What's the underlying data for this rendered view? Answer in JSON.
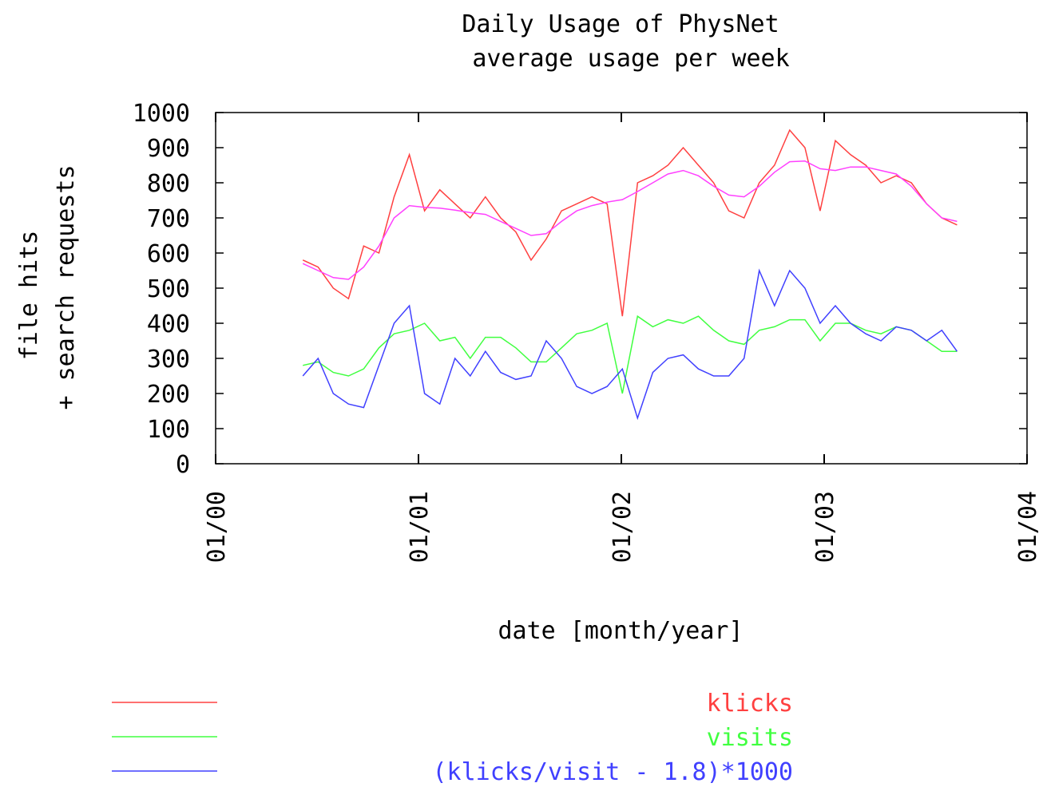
{
  "chart_data": {
    "type": "line",
    "title": "Daily Usage of PhysNet",
    "subtitle": "average usage per week",
    "x_label": "date [month/year]",
    "y_label": [
      "file hits",
      "+ search requests"
    ],
    "x": [
      2000.43,
      2000.505,
      2000.58,
      2000.655,
      2000.73,
      2000.805,
      2000.88,
      2000.955,
      2001.03,
      2001.105,
      2001.18,
      2001.255,
      2001.33,
      2001.405,
      2001.48,
      2001.555,
      2001.63,
      2001.705,
      2001.78,
      2001.855,
      2001.93,
      2002.005,
      2002.08,
      2002.155,
      2002.23,
      2002.305,
      2002.38,
      2002.455,
      2002.53,
      2002.605,
      2002.68,
      2002.755,
      2002.83,
      2002.905,
      2002.98,
      2003.055,
      2003.13,
      2003.205,
      2003.28,
      2003.355,
      2003.43,
      2003.505,
      2003.58,
      2003.655
    ],
    "series": [
      {
        "name": "klicks",
        "color": "#ff4040",
        "values": [
          580,
          560,
          500,
          470,
          620,
          600,
          760,
          880,
          720,
          780,
          740,
          700,
          760,
          700,
          660,
          580,
          640,
          720,
          740,
          760,
          740,
          420,
          800,
          820,
          850,
          900,
          850,
          800,
          720,
          700,
          800,
          850,
          950,
          900,
          720,
          920,
          880,
          850,
          800,
          820,
          800,
          740,
          700,
          680
        ]
      },
      {
        "name": "visits",
        "color": "#40ff40",
        "values": [
          280,
          290,
          260,
          250,
          270,
          330,
          370,
          380,
          400,
          350,
          360,
          300,
          360,
          360,
          330,
          290,
          290,
          330,
          370,
          380,
          400,
          200,
          420,
          390,
          410,
          400,
          420,
          380,
          350,
          340,
          380,
          390,
          410,
          410,
          350,
          400,
          400,
          380,
          370,
          390,
          380,
          350,
          320,
          320
        ]
      },
      {
        "name": "(klicks/visit - 1.8)*1000",
        "color": "#4040ff",
        "values": [
          250,
          300,
          200,
          170,
          160,
          280,
          400,
          450,
          200,
          170,
          300,
          250,
          320,
          260,
          240,
          250,
          350,
          300,
          220,
          200,
          220,
          270,
          130,
          260,
          300,
          310,
          270,
          250,
          250,
          300,
          550,
          450,
          550,
          500,
          400,
          450,
          400,
          370,
          350,
          390,
          380,
          350,
          380,
          320
        ]
      },
      {
        "color": "#ff40ff",
        "values": [
          570,
          550,
          530,
          525,
          560,
          620,
          700,
          735,
          730,
          728,
          722,
          715,
          710,
          690,
          670,
          650,
          655,
          690,
          720,
          735,
          745,
          752,
          775,
          800,
          825,
          835,
          820,
          790,
          765,
          760,
          790,
          830,
          860,
          862,
          840,
          835,
          845,
          845,
          835,
          825,
          790,
          740,
          700,
          690
        ]
      }
    ],
    "xlim": [
      2000,
      2004
    ],
    "xticks": [
      {
        "value": 2000,
        "label": "01/00"
      },
      {
        "value": 2001,
        "label": "01/01"
      },
      {
        "value": 2002,
        "label": "01/02"
      },
      {
        "value": 2003,
        "label": "01/03"
      },
      {
        "value": 2004,
        "label": "01/04"
      }
    ],
    "ylim": [
      0,
      1000
    ],
    "yticks": [
      0,
      100,
      200,
      300,
      400,
      500,
      600,
      700,
      800,
      900,
      1000
    ]
  }
}
